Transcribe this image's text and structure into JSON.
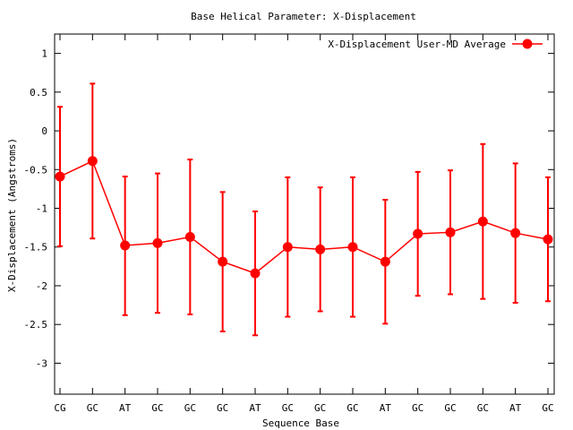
{
  "chart_data": {
    "type": "line",
    "title": "Base  Helical Parameter: X-Displacement",
    "xlabel": "Sequence Base",
    "ylabel": "X-Displacement (Angstroms)",
    "ylim": [
      -3.4,
      1.25
    ],
    "yticks": [
      1,
      0.5,
      0,
      -0.5,
      -1,
      -1.5,
      -2,
      -2.5,
      -3
    ],
    "ytick_labels": [
      "1",
      "0.5",
      "0",
      "-0.5",
      "-1",
      "-1.5",
      "-2",
      "-2.5",
      "-3"
    ],
    "categories": [
      "CG",
      "GC",
      "AT",
      "GC",
      "GC",
      "GC",
      "AT",
      "GC",
      "GC",
      "GC",
      "AT",
      "GC",
      "GC",
      "GC",
      "AT",
      "GC"
    ],
    "legend_position": "top-right",
    "grid": false,
    "series": [
      {
        "name": "X-Displacement User-MD Average",
        "color": "#ff0000",
        "values": [
          -0.59,
          -0.39,
          -1.48,
          -1.45,
          -1.37,
          -1.69,
          -1.84,
          -1.5,
          -1.53,
          -1.5,
          -1.69,
          -1.33,
          -1.31,
          -1.17,
          -1.32,
          -1.4
        ],
        "err_low": [
          -1.49,
          -1.39,
          -2.38,
          -2.35,
          -2.37,
          -2.59,
          -2.64,
          -2.4,
          -2.33,
          -2.4,
          -2.49,
          -2.13,
          -2.11,
          -2.17,
          -2.22,
          -2.2
        ],
        "err_high": [
          0.31,
          0.61,
          -0.59,
          -0.55,
          -0.37,
          -0.79,
          -1.04,
          -0.6,
          -0.73,
          -0.6,
          -0.89,
          -0.53,
          -0.51,
          -0.17,
          -0.42,
          -0.6
        ]
      }
    ]
  }
}
